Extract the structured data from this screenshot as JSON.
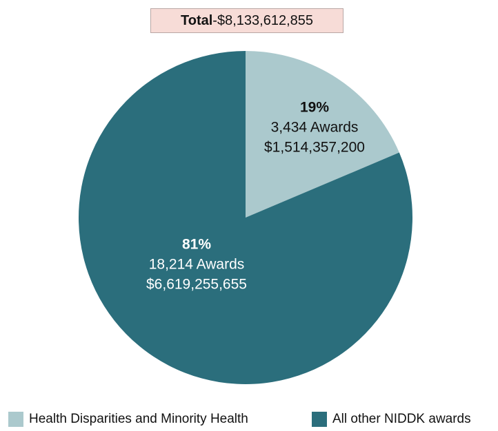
{
  "header": {
    "total_label": "Total",
    "total_sep": " - ",
    "total_value": "$8,133,612,855"
  },
  "chart_data": {
    "type": "pie",
    "categories": [
      "Health Disparities and Minority Health",
      "All other NIDDK awards"
    ],
    "values": [
      1514357200,
      6619255655
    ],
    "percent_labels": [
      "19%",
      "81%"
    ],
    "awards_labels": [
      "3,434 Awards",
      "18,214 Awards"
    ],
    "amount_labels": [
      "$1,514,357,200",
      "$6,619,255,655"
    ],
    "colors": [
      "#abc9cd",
      "#2b6e7c"
    ],
    "legend_position": "bottom"
  }
}
